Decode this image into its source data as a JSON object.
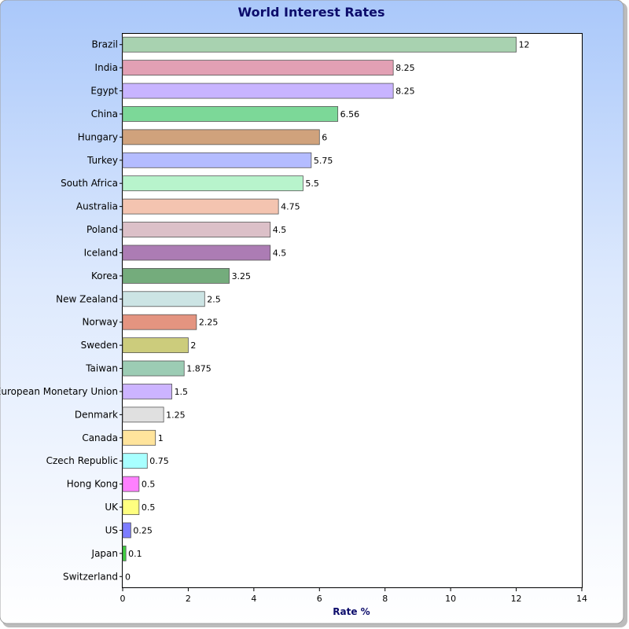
{
  "chart_data": {
    "type": "bar",
    "orientation": "horizontal",
    "title": "World Interest Rates",
    "xlabel": "Rate %",
    "ylabel": "",
    "xlim": [
      0,
      14
    ],
    "x_ticks": [
      "0",
      "2",
      "4",
      "6",
      "8",
      "10",
      "12",
      "14"
    ],
    "grid": false,
    "categories": [
      "Brazil",
      "India",
      "Egypt",
      "China",
      "Hungary",
      "Turkey",
      "South Africa",
      "Australia",
      "Poland",
      "Iceland",
      "Korea",
      "New Zealand",
      "Norway",
      "Sweden",
      "Taiwan",
      "European Monetary Union",
      "Denmark",
      "Canada",
      "Czech Republic",
      "Hong Kong",
      "UK",
      "US",
      "Japan",
      "Switzerland"
    ],
    "values": [
      12,
      8.25,
      8.25,
      6.56,
      6,
      5.75,
      5.5,
      4.75,
      4.5,
      4.5,
      3.25,
      2.5,
      2.25,
      2,
      1.875,
      1.5,
      1.25,
      1,
      0.75,
      0.5,
      0.5,
      0.25,
      0.1,
      0
    ],
    "value_labels": [
      "12",
      "8.25",
      "8.25",
      "6.56",
      "6",
      "5.75",
      "5.5",
      "4.75",
      "4.5",
      "4.5",
      "3.25",
      "2.5",
      "2.25",
      "2",
      "1.875",
      "1.5",
      "1.25",
      "1",
      "0.75",
      "0.5",
      "0.5",
      "0.25",
      "0.1",
      "0"
    ],
    "colors": [
      "#a8d2b0",
      "#e2a0b4",
      "#c8b4ff",
      "#7cd898",
      "#d0a27c",
      "#b4bcff",
      "#b8f4cc",
      "#f4c4b0",
      "#dcc0c8",
      "#ac7cb4",
      "#74ac7c",
      "#cce4e4",
      "#e49480",
      "#cccc7c",
      "#9cccb4",
      "#ccb4ff",
      "#e0e0e0",
      "#ffe49c",
      "#a8ffff",
      "#ff80ff",
      "#ffff80",
      "#7c7cff",
      "#40d040",
      "#80a0ff"
    ],
    "legend": "none"
  }
}
